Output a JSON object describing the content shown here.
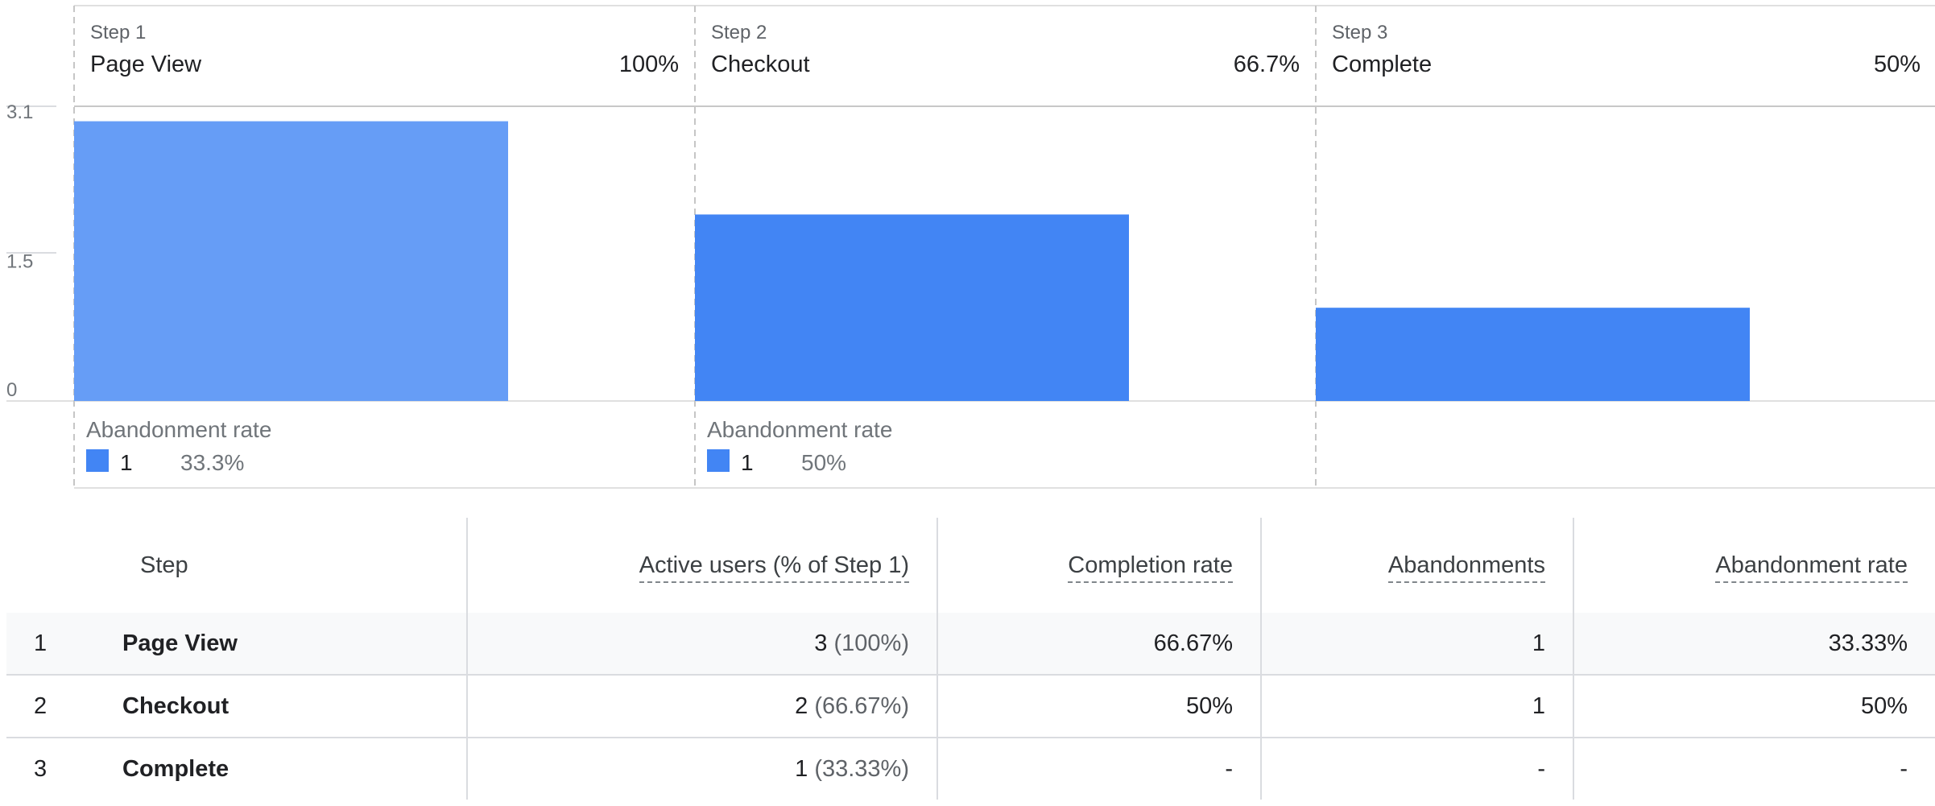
{
  "chart_data": {
    "type": "bar",
    "y_ticks": [
      "0",
      "1.5",
      "3.1"
    ],
    "ylim": [
      0,
      3.1
    ],
    "steps": [
      {
        "step_label": "Step 1",
        "name": "Page View",
        "percent": "100%",
        "value": 3,
        "color": "#669df6",
        "abandonment": {
          "label": "Abandonment rate",
          "count": "1",
          "rate": "33.3%",
          "color": "#4285f4"
        }
      },
      {
        "step_label": "Step 2",
        "name": "Checkout",
        "percent": "66.7%",
        "value": 2,
        "color": "#4285f4",
        "abandonment": {
          "label": "Abandonment rate",
          "count": "1",
          "rate": "50%",
          "color": "#4285f4"
        }
      },
      {
        "step_label": "Step 3",
        "name": "Complete",
        "percent": "50%",
        "value": 1,
        "color": "#4285f4",
        "abandonment": null
      }
    ]
  },
  "table": {
    "headers": {
      "step": "Step",
      "active_users": "Active users (% of Step 1)",
      "completion_rate": "Completion rate",
      "abandonments": "Abandonments",
      "abandonment_rate": "Abandonment rate"
    },
    "rows": [
      {
        "index": "1",
        "step": "Page View",
        "active_users": "3",
        "active_pct": "(100%)",
        "completion_rate": "66.67%",
        "abandonments": "1",
        "abandonment_rate": "33.33%"
      },
      {
        "index": "2",
        "step": "Checkout",
        "active_users": "2",
        "active_pct": "(66.67%)",
        "completion_rate": "50%",
        "abandonments": "1",
        "abandonment_rate": "50%"
      },
      {
        "index": "3",
        "step": "Complete",
        "active_users": "1",
        "active_pct": "(33.33%)",
        "completion_rate": "-",
        "abandonments": "-",
        "abandonment_rate": "-"
      }
    ]
  }
}
